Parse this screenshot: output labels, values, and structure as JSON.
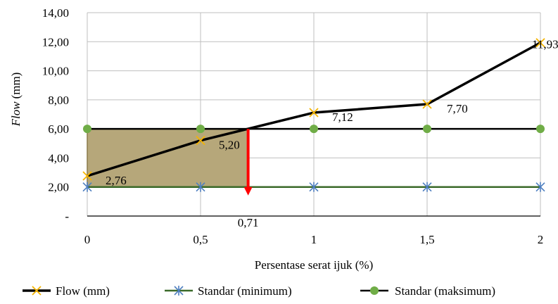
{
  "chart_data": {
    "type": "line",
    "x": [
      0,
      0.5,
      1,
      1.5,
      2
    ],
    "x_tick_labels": [
      "0",
      "0,5",
      "1",
      "1,5",
      "2"
    ],
    "xlim": [
      0,
      2
    ],
    "ylim": [
      0,
      14
    ],
    "y_ticks": [
      0,
      2,
      4,
      6,
      8,
      10,
      12,
      14
    ],
    "y_tick_labels": [
      "-",
      "2,00",
      "4,00",
      "6,00",
      "8,00",
      "10,00",
      "12,00",
      "14,00"
    ],
    "xlabel": "Persentase serat ijuk (%)",
    "ylabel_italic": "Flow",
    "ylabel_unit": "(mm)",
    "grid": true,
    "legend_position": "bottom",
    "series": [
      {
        "name": "Flow (mm)",
        "values": [
          2.76,
          5.2,
          7.12,
          7.7,
          11.93
        ],
        "data_labels": [
          "2,76",
          "5,20",
          "7,12",
          "7,70",
          "11,93"
        ],
        "line_color": "#000000",
        "marker": "x",
        "marker_color": "#F5B400"
      },
      {
        "name": "Standar (minimum)",
        "values": [
          2,
          2,
          2,
          2,
          2
        ],
        "line_color": "#3B6A2A",
        "marker": "asterisk",
        "marker_color": "#4E7FC0"
      },
      {
        "name": "Standar (maksimum)",
        "values": [
          6,
          6,
          6,
          6,
          6
        ],
        "line_color": "#000000",
        "marker": "circle",
        "marker_color": "#70AD47"
      }
    ],
    "annotation": {
      "x": 0.71,
      "label": "0,71",
      "arrow_color": "#FF0000",
      "region_y": [
        2,
        6
      ],
      "region_fill": "#B6A77A",
      "region_border": "#8C7A4A"
    }
  }
}
